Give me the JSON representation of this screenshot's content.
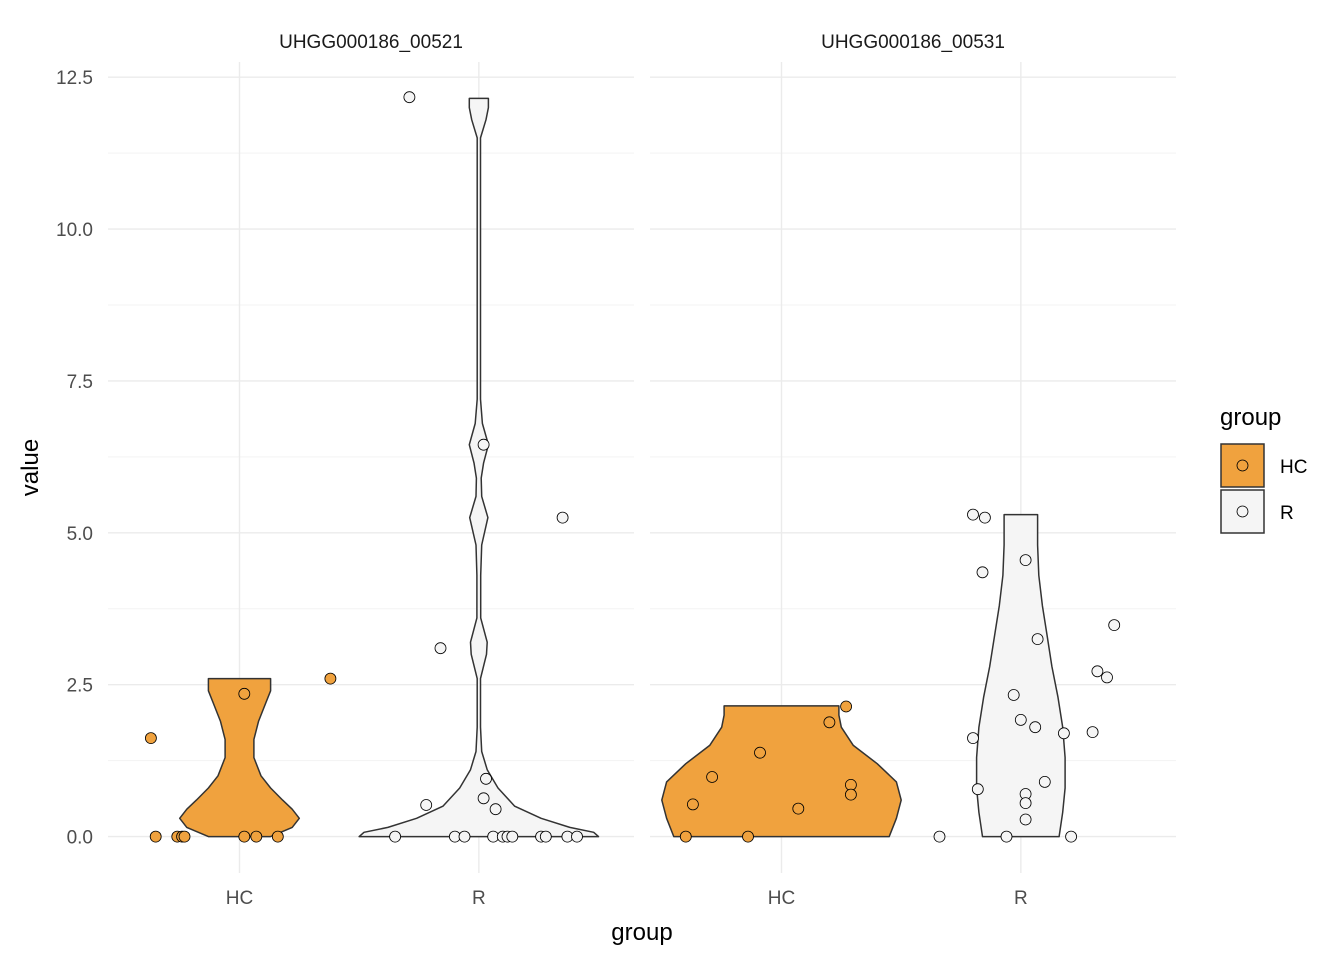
{
  "chart_data": {
    "type": "violin",
    "facets": [
      "UHGG000186_00521",
      "UHGG000186_00531"
    ],
    "categories": [
      "HC",
      "R"
    ],
    "xlabel": "group",
    "ylabel": "value",
    "ylim": [
      -0.6,
      12.75
    ],
    "yticks": [
      0.0,
      2.5,
      5.0,
      7.5,
      10.0,
      12.5
    ],
    "ytick_labels": [
      "0.0",
      "2.5",
      "5.0",
      "7.5",
      "10.0",
      "12.5"
    ],
    "grid": true,
    "legend": {
      "title": "group",
      "position": "right",
      "entries": [
        {
          "label": "HC",
          "color": "#F0A23E"
        },
        {
          "label": "R",
          "color": "#F5F5F5"
        }
      ]
    },
    "colors": {
      "HC": "#F0A23E",
      "R": "#F5F5F5",
      "outline": "#333333"
    },
    "violins": [
      {
        "facet": 0,
        "group": "HC",
        "range": [
          0,
          2.6
        ],
        "profile": [
          [
            0,
            0.13
          ],
          [
            0.15,
            0.22
          ],
          [
            0.3,
            0.25
          ],
          [
            0.45,
            0.22
          ],
          [
            0.6,
            0.18
          ],
          [
            0.8,
            0.13
          ],
          [
            1.0,
            0.09
          ],
          [
            1.3,
            0.06
          ],
          [
            1.6,
            0.06
          ],
          [
            1.9,
            0.08
          ],
          [
            2.2,
            0.11
          ],
          [
            2.4,
            0.13
          ],
          [
            2.6,
            0.13
          ]
        ]
      },
      {
        "facet": 0,
        "group": "R",
        "range": [
          0,
          12.15
        ],
        "profile": [
          [
            0,
            0.5
          ],
          [
            0.07,
            0.48
          ],
          [
            0.15,
            0.38
          ],
          [
            0.3,
            0.26
          ],
          [
            0.5,
            0.15
          ],
          [
            0.8,
            0.08
          ],
          [
            1.1,
            0.035
          ],
          [
            1.4,
            0.012
          ],
          [
            1.8,
            0.007
          ],
          [
            2.6,
            0.007
          ],
          [
            3.0,
            0.032
          ],
          [
            3.2,
            0.035
          ],
          [
            3.6,
            0.008
          ],
          [
            4.3,
            0.008
          ],
          [
            4.8,
            0.012
          ],
          [
            5.25,
            0.038
          ],
          [
            5.6,
            0.012
          ],
          [
            5.9,
            0.01
          ],
          [
            6.15,
            0.02
          ],
          [
            6.45,
            0.04
          ],
          [
            6.8,
            0.015
          ],
          [
            7.2,
            0.007
          ],
          [
            11.5,
            0.007
          ],
          [
            11.8,
            0.03
          ],
          [
            12.0,
            0.04
          ],
          [
            12.15,
            0.04
          ]
        ]
      },
      {
        "facet": 1,
        "group": "HC",
        "range": [
          0,
          2.15
        ],
        "profile": [
          [
            0,
            0.45
          ],
          [
            0.3,
            0.48
          ],
          [
            0.6,
            0.5
          ],
          [
            0.9,
            0.48
          ],
          [
            1.2,
            0.4
          ],
          [
            1.5,
            0.3
          ],
          [
            1.8,
            0.25
          ],
          [
            2.0,
            0.24
          ],
          [
            2.15,
            0.24
          ]
        ]
      },
      {
        "facet": 1,
        "group": "R",
        "range": [
          0,
          5.3
        ],
        "profile": [
          [
            0,
            0.16
          ],
          [
            0.4,
            0.175
          ],
          [
            0.8,
            0.185
          ],
          [
            1.3,
            0.185
          ],
          [
            1.8,
            0.175
          ],
          [
            2.3,
            0.155
          ],
          [
            2.8,
            0.13
          ],
          [
            3.3,
            0.11
          ],
          [
            3.8,
            0.09
          ],
          [
            4.3,
            0.075
          ],
          [
            4.8,
            0.07
          ],
          [
            5.3,
            0.07
          ]
        ]
      }
    ],
    "points": [
      {
        "facet": 0,
        "group": "HC",
        "values": [
          [
            -0.37,
            1.62
          ],
          [
            -0.35,
            0.0
          ],
          [
            -0.26,
            0.0
          ],
          [
            -0.24,
            0.0
          ],
          [
            -0.23,
            0.0
          ],
          [
            0.02,
            2.35
          ],
          [
            0.02,
            0.0
          ],
          [
            0.07,
            0.0
          ],
          [
            0.16,
            0.0
          ],
          [
            0.38,
            2.6
          ]
        ]
      },
      {
        "facet": 0,
        "group": "R",
        "values": [
          [
            -0.29,
            12.17
          ],
          [
            -0.35,
            0.0
          ],
          [
            -0.22,
            0.52
          ],
          [
            -0.16,
            3.1
          ],
          [
            -0.1,
            0.0
          ],
          [
            -0.06,
            0.0
          ],
          [
            0.02,
            6.45
          ],
          [
            0.03,
            0.95
          ],
          [
            0.02,
            0.63
          ],
          [
            0.07,
            0.45
          ],
          [
            0.06,
            0.0
          ],
          [
            0.1,
            0.0
          ],
          [
            0.12,
            0.0
          ],
          [
            0.14,
            0.0
          ],
          [
            0.26,
            0.0
          ],
          [
            0.28,
            0.0
          ],
          [
            0.35,
            5.25
          ],
          [
            0.37,
            0.0
          ],
          [
            0.41,
            0.0
          ]
        ]
      },
      {
        "facet": 1,
        "group": "HC",
        "values": [
          [
            -0.4,
            0.0
          ],
          [
            -0.37,
            0.53
          ],
          [
            -0.29,
            0.98
          ],
          [
            -0.14,
            0.0
          ],
          [
            -0.09,
            1.38
          ],
          [
            0.07,
            0.46
          ],
          [
            0.2,
            1.88
          ],
          [
            0.27,
            2.14
          ],
          [
            0.29,
            0.85
          ],
          [
            0.29,
            0.69
          ]
        ]
      },
      {
        "facet": 1,
        "group": "R",
        "values": [
          [
            -0.34,
            0.0
          ],
          [
            -0.2,
            1.62
          ],
          [
            -0.2,
            5.3
          ],
          [
            -0.18,
            0.78
          ],
          [
            -0.16,
            4.35
          ],
          [
            -0.15,
            5.25
          ],
          [
            -0.06,
            0.0
          ],
          [
            -0.03,
            2.33
          ],
          [
            -0.0,
            1.92
          ],
          [
            0.02,
            4.55
          ],
          [
            0.02,
            0.7
          ],
          [
            0.02,
            0.55
          ],
          [
            0.02,
            0.28
          ],
          [
            0.07,
            3.25
          ],
          [
            0.06,
            1.8
          ],
          [
            0.1,
            0.9
          ],
          [
            0.18,
            1.7
          ],
          [
            0.21,
            0.0
          ],
          [
            0.3,
            1.72
          ],
          [
            0.32,
            2.72
          ],
          [
            0.36,
            2.62
          ],
          [
            0.39,
            3.48
          ]
        ]
      }
    ]
  }
}
